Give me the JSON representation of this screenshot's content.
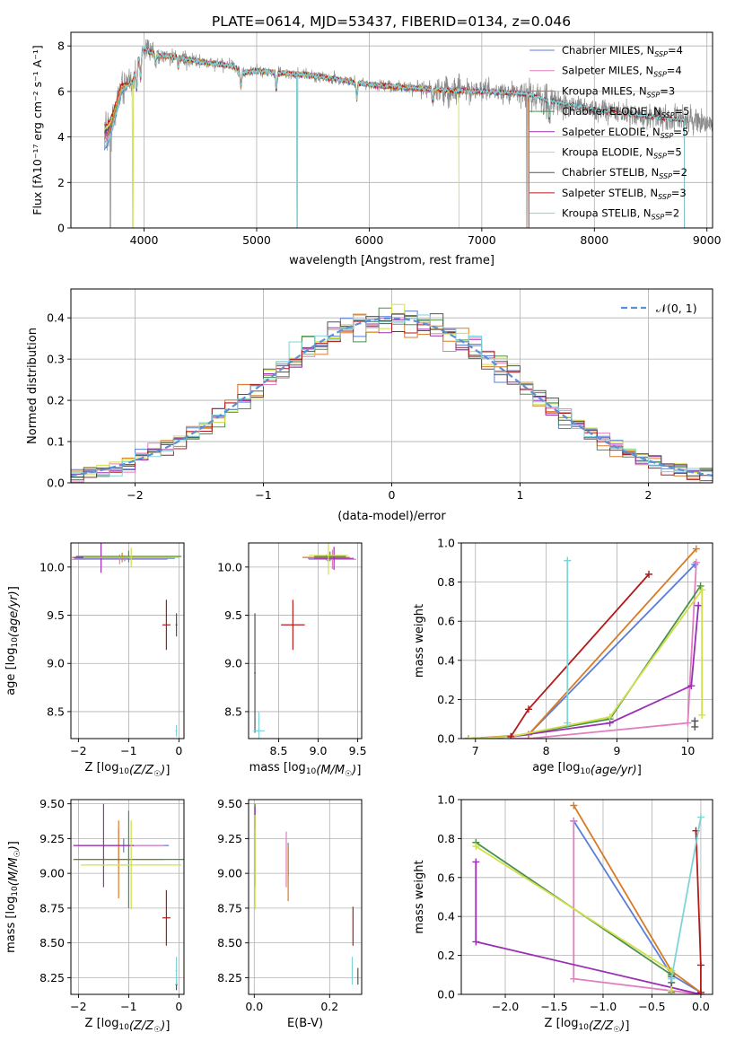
{
  "title": "PLATE=0614, MJD=53437, FIBERID=0134, z=0.046",
  "colors": [
    "#5b7fd6",
    "#e07fbf",
    "#d97b26",
    "#4a8f4a",
    "#9a2fb5",
    "#cfe04a",
    "#555555",
    "#b31b1b",
    "#7fd3d8"
  ],
  "legend": [
    {
      "main": "Chabrier MILES, N",
      "sub": "SSP",
      "tail": "=4"
    },
    {
      "main": "Salpeter MILES, N",
      "sub": "SSP",
      "tail": "=4"
    },
    {
      "main": "Kroupa MILES, N",
      "sub": "SSP",
      "tail": "=3"
    },
    {
      "main": "Chabrier ELODIE, N",
      "sub": "SSP",
      "tail": "=5"
    },
    {
      "main": "Salpeter ELODIE, N",
      "sub": "SSP",
      "tail": "=5"
    },
    {
      "main": "Kroupa ELODIE, N",
      "sub": "SSP",
      "tail": "=5"
    },
    {
      "main": "Chabrier STELIB, N",
      "sub": "SSP",
      "tail": "=2"
    },
    {
      "main": "Salpeter STELIB, N",
      "sub": "SSP",
      "tail": "=3"
    },
    {
      "main": "Kroupa STELIB, N",
      "sub": "SSP",
      "tail": "=2"
    }
  ],
  "chart_data": [
    {
      "id": "spectrum",
      "type": "line",
      "xlabel": "wavelength [Angstrom, rest frame]",
      "ylabel": "Flux [fλ10⁻¹⁷ erg cm⁻² s⁻¹ A⁻¹]",
      "xlim": [
        3350,
        9050
      ],
      "ylim": [
        0,
        8.6
      ],
      "xticks": [
        4000,
        5000,
        6000,
        7000,
        8000,
        9000
      ],
      "yticks": [
        0,
        2,
        4,
        6,
        8
      ],
      "data_range": [
        3650,
        9200
      ],
      "continuum": {
        "x": [
          3650,
          3700,
          3800,
          3900,
          3950,
          4000,
          4100,
          4300,
          4500,
          4800,
          4850,
          5000,
          5500,
          6000,
          6500,
          7000,
          7400,
          7600,
          8000,
          8500,
          9200
        ],
        "y": [
          4.2,
          4.5,
          6.2,
          6.4,
          7.4,
          7.9,
          7.6,
          7.5,
          7.3,
          7.1,
          6.8,
          6.9,
          6.7,
          6.3,
          6.1,
          6.0,
          5.9,
          5.6,
          5.2,
          4.9,
          4.5
        ]
      },
      "model_offsets": [
        [
          3650,
          3880,
          -0.7
        ],
        [
          3650,
          3880,
          -0.4
        ],
        [
          3650,
          3880,
          -0.2
        ],
        [
          3650,
          3880,
          -0.3
        ],
        [
          3650,
          3880,
          -0.1
        ],
        [
          3650,
          3880,
          0.1
        ],
        [
          3650,
          3880,
          0.0
        ],
        [
          3650,
          3880,
          0.3
        ],
        [
          3650,
          3880,
          -0.6
        ]
      ],
      "model_ranges": [
        [
          3650,
          7420
        ],
        [
          3650,
          7420
        ],
        [
          3650,
          7420
        ],
        [
          3650,
          7420
        ],
        [
          3650,
          7420
        ],
        [
          3650,
          6800
        ],
        [
          3650,
          8800
        ],
        [
          3650,
          8800
        ],
        [
          3650,
          8800
        ]
      ],
      "absorptions": [
        [
          3934,
          1.0
        ],
        [
          3969,
          1.0
        ],
        [
          4102,
          0.4
        ],
        [
          4304,
          0.5
        ],
        [
          4861,
          0.6
        ],
        [
          5175,
          0.8
        ],
        [
          5890,
          0.7
        ],
        [
          6563,
          0.5
        ],
        [
          7600,
          0.8
        ]
      ],
      "observed_dips": [
        [
          3700,
          0
        ],
        [
          5360,
          0
        ],
        [
          7400,
          0
        ]
      ],
      "model_dips": [
        [
          3900,
          0,
          5
        ],
        [
          6800,
          0,
          5
        ],
        [
          5360,
          0,
          8
        ],
        [
          7420,
          0,
          0
        ],
        [
          7420,
          0,
          1
        ],
        [
          7420,
          0,
          2
        ]
      ],
      "noise_sigma": {
        "x": [
          3650,
          3800,
          4000,
          4500,
          5000,
          6000,
          6500,
          6700,
          7000,
          7400,
          7600,
          8000,
          8500,
          9000
        ],
        "y": [
          1.4,
          0.9,
          0.6,
          0.35,
          0.3,
          0.3,
          0.4,
          0.9,
          0.5,
          0.7,
          0.9,
          0.5,
          0.8,
          0.6
        ]
      }
    },
    {
      "id": "residuals",
      "type": "step",
      "xlabel": "(data-model)/error",
      "ylabel": "Normed distribution",
      "xlim": [
        -2.5,
        2.5
      ],
      "ylim": [
        0,
        0.47
      ],
      "xticks": [
        -2,
        -1,
        0,
        1,
        2
      ],
      "yticks": [
        0,
        0.1,
        0.2,
        0.3,
        0.4
      ],
      "bin_width": 0.1,
      "jitter": 0.025,
      "reference": {
        "name": "𝒩(0, 1)",
        "mean": 0,
        "std": 1,
        "color": "#5b8fd6"
      }
    },
    {
      "id": "age_vs_Z",
      "type": "errorbar",
      "xlabel": "Z [log10(Z/Z☉)]",
      "ylabel": "age  [log10(age/yr)]",
      "xlim": [
        -2.15,
        0.1
      ],
      "ylim": [
        8.22,
        10.25
      ],
      "xticks": [
        -2,
        -1,
        0
      ],
      "yticks": [
        8.5,
        9.0,
        9.5,
        10.0
      ],
      "points": [
        {
          "x": -1.08,
          "y": 10.09,
          "xerr": 1.0,
          "yerr": 0.03,
          "c": 0
        },
        {
          "x": -1.18,
          "y": 10.08,
          "xerr": 0.95,
          "yerr": 0.05,
          "c": 1
        },
        {
          "x": -1.13,
          "y": 10.1,
          "xerr": 1.0,
          "yerr": 0.05,
          "c": 2
        },
        {
          "x": -1.0,
          "y": 10.11,
          "xerr": 1.05,
          "yerr": 0.06,
          "c": 3
        },
        {
          "x": -1.55,
          "y": 10.1,
          "xerr": 0.55,
          "yerr": 0.16,
          "c": 4
        },
        {
          "x": -0.95,
          "y": 10.1,
          "xerr": 0.95,
          "yerr": 0.1,
          "c": 5
        },
        {
          "x": -0.05,
          "y": 9.4,
          "xerr": 0.02,
          "yerr": 0.12,
          "c": 6
        },
        {
          "x": -0.25,
          "y": 9.4,
          "xerr": 0.08,
          "yerr": 0.26,
          "c": 7
        },
        {
          "x": -0.05,
          "y": 8.3,
          "xerr": 0.02,
          "yerr": 0.06,
          "c": 8
        }
      ]
    },
    {
      "id": "age_vs_mass",
      "type": "errorbar",
      "xlabel": "mass [log10(M/M☉)]",
      "ylabel": "",
      "xlim": [
        8.12,
        9.55
      ],
      "ylim": [
        8.22,
        10.25
      ],
      "xticks": [
        8.5,
        9.0,
        9.5
      ],
      "yticks": [
        8.5,
        9.0,
        9.5,
        10.0
      ],
      "points": [
        {
          "x": 9.12,
          "y": 10.09,
          "xerr": 0.25,
          "yerr": 0.03,
          "c": 0
        },
        {
          "x": 9.18,
          "y": 10.08,
          "xerr": 0.3,
          "yerr": 0.1,
          "c": 1
        },
        {
          "x": 9.1,
          "y": 10.1,
          "xerr": 0.3,
          "yerr": 0.03,
          "c": 2
        },
        {
          "x": 9.15,
          "y": 10.11,
          "xerr": 0.2,
          "yerr": 0.05,
          "c": 3
        },
        {
          "x": 9.2,
          "y": 10.09,
          "xerr": 0.25,
          "yerr": 0.12,
          "c": 4
        },
        {
          "x": 9.13,
          "y": 10.12,
          "xerr": 0.25,
          "yerr": 0.2,
          "c": 5
        },
        {
          "x": 8.2,
          "y": 8.9,
          "xerr": 0.01,
          "yerr": 0.62,
          "c": 6
        },
        {
          "x": 8.68,
          "y": 9.4,
          "xerr": 0.15,
          "yerr": 0.26,
          "c": 7
        },
        {
          "x": 8.25,
          "y": 8.3,
          "xerr": 0.07,
          "yerr": 0.2,
          "c": 8
        }
      ]
    },
    {
      "id": "mw_vs_age",
      "type": "line",
      "xlabel": "age  [log10(age/yr)]",
      "ylabel": "mass weight",
      "xlim": [
        6.8,
        10.35
      ],
      "ylim": [
        0,
        1
      ],
      "xticks": [
        7,
        8,
        9,
        10
      ],
      "yticks": [
        0,
        0.2,
        0.4,
        0.6,
        0.8,
        1.0
      ],
      "series": [
        {
          "c": 0,
          "x": [
            7.5,
            7.75,
            10.1
          ],
          "y": [
            0.01,
            0.02,
            0.89
          ]
        },
        {
          "c": 1,
          "x": [
            7.5,
            7.75,
            10.0,
            10.12
          ],
          "y": [
            0.0,
            0.0,
            0.08,
            0.9
          ]
        },
        {
          "c": 2,
          "x": [
            6.9,
            7.75,
            10.12
          ],
          "y": [
            0.0,
            0.02,
            0.97
          ]
        },
        {
          "c": 3,
          "x": [
            6.9,
            7.5,
            8.9,
            10.18
          ],
          "y": [
            0.0,
            0.01,
            0.1,
            0.78
          ]
        },
        {
          "c": 4,
          "x": [
            6.9,
            7.5,
            8.9,
            10.05,
            10.15
          ],
          "y": [
            0.0,
            0.01,
            0.08,
            0.27,
            0.68
          ]
        },
        {
          "c": 5,
          "x": [
            6.9,
            7.5,
            8.9,
            10.2,
            10.2
          ],
          "y": [
            0.0,
            0.01,
            0.11,
            0.76,
            0.12
          ]
        },
        {
          "c": 6,
          "x": [
            10.1,
            10.1
          ],
          "y": [
            0.06,
            0.09
          ]
        },
        {
          "c": 7,
          "x": [
            7.5,
            7.75,
            9.45
          ],
          "y": [
            0.01,
            0.15,
            0.84
          ]
        },
        {
          "c": 8,
          "x": [
            8.3,
            8.3
          ],
          "y": [
            0.08,
            0.91
          ]
        }
      ]
    },
    {
      "id": "mass_vs_Z",
      "type": "errorbar",
      "xlabel": "Z [log10(Z/Z☉)]",
      "ylabel": "mass [log10(M/M☉)]",
      "xlim": [
        -2.15,
        0.1
      ],
      "ylim": [
        8.13,
        9.53
      ],
      "xticks": [
        -2,
        -1,
        0
      ],
      "yticks": [
        8.25,
        8.5,
        8.75,
        9.0,
        9.25,
        9.5
      ],
      "points": [
        {
          "x": -1.1,
          "y": 9.2,
          "xerr": 0.9,
          "yerr": 0.05,
          "c": 0
        },
        {
          "x": -1.2,
          "y": 9.2,
          "xerr": 0.9,
          "yerr": 0.12,
          "c": 1
        },
        {
          "x": -1.2,
          "y": 9.1,
          "xerr": 0.9,
          "yerr": 0.28,
          "c": 2
        },
        {
          "x": -1.0,
          "y": 9.1,
          "xerr": 1.1,
          "yerr": 0.35,
          "c": 3
        },
        {
          "x": -1.5,
          "y": 9.2,
          "xerr": 0.6,
          "yerr": 0.3,
          "c": 4
        },
        {
          "x": -0.95,
          "y": 9.06,
          "xerr": 1.0,
          "yerr": 0.32,
          "c": 5
        },
        {
          "x": -0.05,
          "y": 8.2,
          "xerr": 0.02,
          "yerr": 0.04,
          "c": 6
        },
        {
          "x": -0.25,
          "y": 8.68,
          "xerr": 0.08,
          "yerr": 0.2,
          "c": 7
        },
        {
          "x": -0.05,
          "y": 8.3,
          "xerr": 0.02,
          "yerr": 0.1,
          "c": 8
        }
      ]
    },
    {
      "id": "mass_vs_ebv",
      "type": "errorbar",
      "xlabel": "E(B-V)",
      "ylabel": "",
      "xlim": [
        -0.015,
        0.285
      ],
      "ylim": [
        8.13,
        9.53
      ],
      "xticks": [
        0.0,
        0.2
      ],
      "yticks": [
        8.25,
        8.5,
        8.75,
        9.0,
        9.25,
        9.5
      ],
      "points": [
        {
          "x": 0.09,
          "y": 9.1,
          "xerr": 0.0,
          "yerr": 0.12,
          "c": 0
        },
        {
          "x": 0.085,
          "y": 9.1,
          "xerr": 0.0,
          "yerr": 0.2,
          "c": 1
        },
        {
          "x": 0.09,
          "y": 9.0,
          "xerr": 0.0,
          "yerr": 0.2,
          "c": 2
        },
        {
          "x": 0.002,
          "y": 9.2,
          "xerr": 0.0,
          "yerr": 0.3,
          "c": 3
        },
        {
          "x": 0.002,
          "y": 9.4,
          "xerr": 0.0,
          "yerr": 0.08,
          "c": 4
        },
        {
          "x": 0.002,
          "y": 9.08,
          "xerr": 0.0,
          "yerr": 0.34,
          "c": 5
        },
        {
          "x": 0.275,
          "y": 8.26,
          "xerr": 0.0,
          "yerr": 0.06,
          "c": 6
        },
        {
          "x": 0.262,
          "y": 8.62,
          "xerr": 0.0,
          "yerr": 0.14,
          "c": 7
        },
        {
          "x": 0.26,
          "y": 8.3,
          "xerr": 0.0,
          "yerr": 0.1,
          "c": 8
        }
      ]
    },
    {
      "id": "mw_vs_Z",
      "type": "line",
      "xlabel": "Z [log10(Z/Z☉)]",
      "ylabel": "mass weight",
      "xlim": [
        -2.45,
        0.12
      ],
      "ylim": [
        0,
        1
      ],
      "xticks": [
        -2.0,
        -1.5,
        -1.0,
        -0.5,
        0.0
      ],
      "yticks": [
        0,
        0.2,
        0.4,
        0.6,
        0.8,
        1.0
      ],
      "series": [
        {
          "c": 0,
          "x": [
            -1.3,
            -0.3,
            0.0
          ],
          "y": [
            0.89,
            0.1,
            0.01
          ]
        },
        {
          "c": 1,
          "x": [
            -1.3,
            -1.3,
            0.0
          ],
          "y": [
            0.89,
            0.08,
            0.0
          ]
        },
        {
          "c": 2,
          "x": [
            -1.3,
            -0.3,
            0.0
          ],
          "y": [
            0.97,
            0.12,
            0.01
          ]
        },
        {
          "c": 3,
          "x": [
            -2.3,
            -0.3,
            -0.3
          ],
          "y": [
            0.78,
            0.1,
            0.01
          ]
        },
        {
          "c": 4,
          "x": [
            -2.3,
            -2.3,
            0.0
          ],
          "y": [
            0.68,
            0.27,
            0.0
          ]
        },
        {
          "c": 5,
          "x": [
            -2.3,
            -0.3,
            -0.3
          ],
          "y": [
            0.76,
            0.12,
            0.02
          ]
        },
        {
          "c": 6,
          "x": [
            -0.3,
            -0.3
          ],
          "y": [
            0.06,
            0.09
          ]
        },
        {
          "c": 7,
          "x": [
            -0.05,
            0.0,
            0.0
          ],
          "y": [
            0.84,
            0.15,
            0.01
          ]
        },
        {
          "c": 8,
          "x": [
            -0.3,
            0.0
          ],
          "y": [
            0.08,
            0.91
          ]
        }
      ]
    }
  ]
}
